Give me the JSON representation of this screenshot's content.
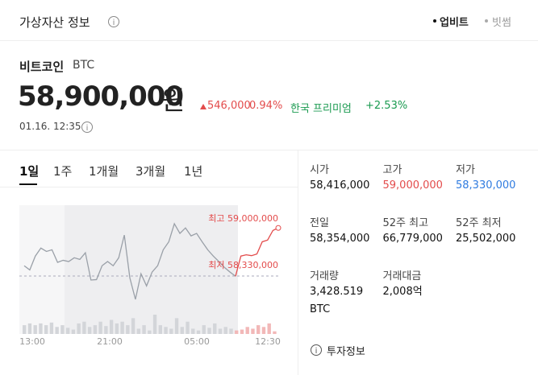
{
  "header": {
    "title": "가상자산 정보",
    "tabs": [
      "업비트",
      "빗썸"
    ]
  },
  "asset": {
    "name": "비트코인",
    "symbol": "BTC",
    "price": "58,900,000",
    "unit": "원",
    "change": "546,000",
    "change_rate": "0.94%",
    "premium_label": "한국 프리미엄",
    "premium": "+2.53%",
    "time": "01.16. 12:35"
  },
  "periods": [
    "1일",
    "1주",
    "1개월",
    "3개월",
    "1년"
  ],
  "stats": [
    {
      "label": "시가",
      "value": "58,416,000"
    },
    {
      "label": "고가",
      "value": "59,000,000",
      "color": "#e34c4c"
    },
    {
      "label": "저가",
      "value": "58,330,000",
      "color": "#2f7be0"
    },
    {
      "label": "전일",
      "value": "58,354,000"
    },
    {
      "label": "52주 최고",
      "value": "66,779,000"
    },
    {
      "label": "52주 최저",
      "value": "25,502,000"
    },
    {
      "label": "거래량",
      "value": "3,428.519",
      "unit": "BTC"
    },
    {
      "label": "거래대금",
      "value": "2,008억"
    }
  ],
  "chart_data": {
    "type": "line",
    "x_labels": [
      "13:00",
      "21:00",
      "05:00",
      "12:30"
    ],
    "high_label": "최고 59,000,000",
    "low_label": "최저 58,330,000",
    "series": [
      {
        "color": "#9aa0a8",
        "values": [
          58100000,
          58000000,
          58330000,
          58520000,
          58440000,
          58480000,
          58180000,
          58230000,
          58200000,
          58290000,
          58250000,
          58410000,
          57760000,
          57770000,
          58100000,
          58200000,
          58100000,
          58290000,
          58830000,
          57810000,
          57300000,
          57910000,
          57620000,
          57950000,
          58100000,
          58480000,
          58670000,
          59100000,
          58870000,
          59000000,
          58810000,
          58870000,
          58670000,
          58480000,
          58330000,
          58200000,
          58060000,
          57950000,
          57850000
        ]
      },
      {
        "color": "#e34c4c",
        "values": [
          58330000,
          58360000,
          58340000,
          58380000,
          58670000,
          58710000,
          58940000,
          59000000
        ]
      }
    ],
    "volume": {
      "color": "#d3d5d9",
      "today_color": "#f2b8b8",
      "values": [
        10,
        12,
        10,
        12,
        10,
        13,
        8,
        10,
        7,
        5,
        12,
        14,
        8,
        10,
        14,
        9,
        16,
        12,
        14,
        10,
        18,
        6,
        10,
        4,
        22,
        10,
        8,
        6,
        18,
        8,
        14,
        6,
        4,
        10,
        7,
        12,
        6,
        8,
        6
      ],
      "today": [
        4,
        5,
        8,
        6,
        10,
        8,
        12,
        3
      ]
    }
  },
  "footer": {
    "link": "투자정보"
  }
}
